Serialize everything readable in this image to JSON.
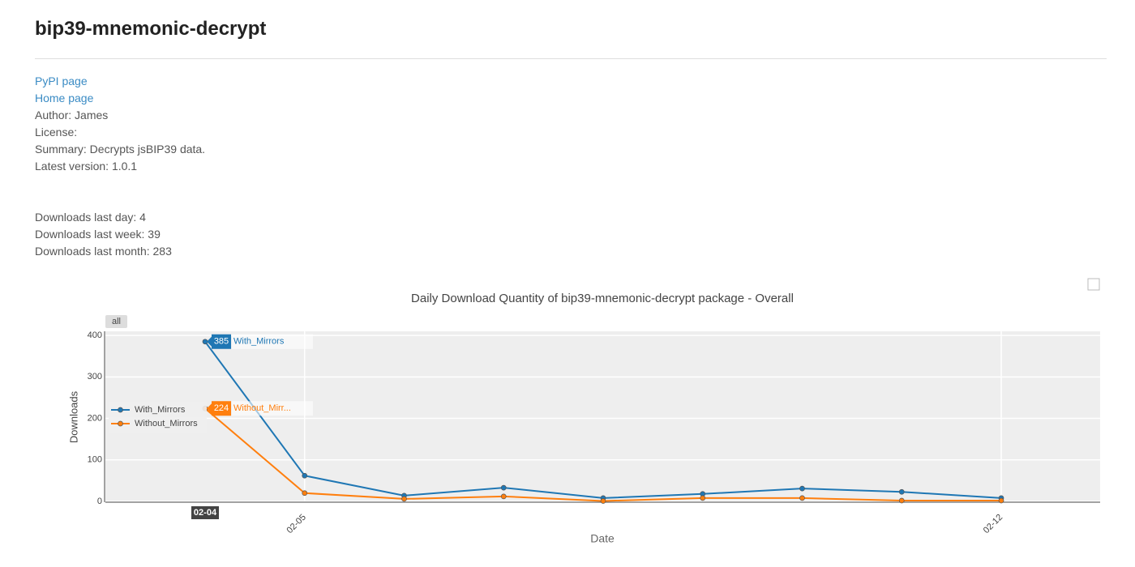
{
  "header": {
    "title": "bip39-mnemonic-decrypt"
  },
  "links": [
    "PyPI page",
    "Home page"
  ],
  "info": [
    "Author: James",
    "License:",
    "Summary: Decrypts jsBIP39 data.",
    "Latest version: 1.0.1"
  ],
  "downloads": [
    "Downloads last day: 4",
    "Downloads last week: 39",
    "Downloads last month: 283"
  ],
  "chart_data": {
    "type": "line",
    "title": "Daily Download Quantity of bip39-mnemonic-decrypt package - Overall",
    "x_label": "Date",
    "y_label": "Downloads",
    "range_button": "all",
    "categories": [
      null,
      "02-05",
      null,
      null,
      null,
      null,
      null,
      null,
      "02-12"
    ],
    "series": [
      {
        "name": "With_Mirrors",
        "color": "#1f77b4",
        "values": [
          385,
          62,
          14,
          33,
          8,
          18,
          31,
          23,
          8
        ]
      },
      {
        "name": "Without_Mirrors",
        "color": "#ff7f0e",
        "values": [
          224,
          20,
          6,
          12,
          1,
          8,
          8,
          2,
          2
        ]
      }
    ],
    "ylim": [
      0,
      410
    ],
    "yticks": [
      0,
      100,
      200,
      300,
      400
    ],
    "grid": true,
    "legend": "left",
    "hover": {
      "x": "02-04",
      "names": [
        "With_Mirrors",
        "Without_Mirr..."
      ]
    }
  }
}
